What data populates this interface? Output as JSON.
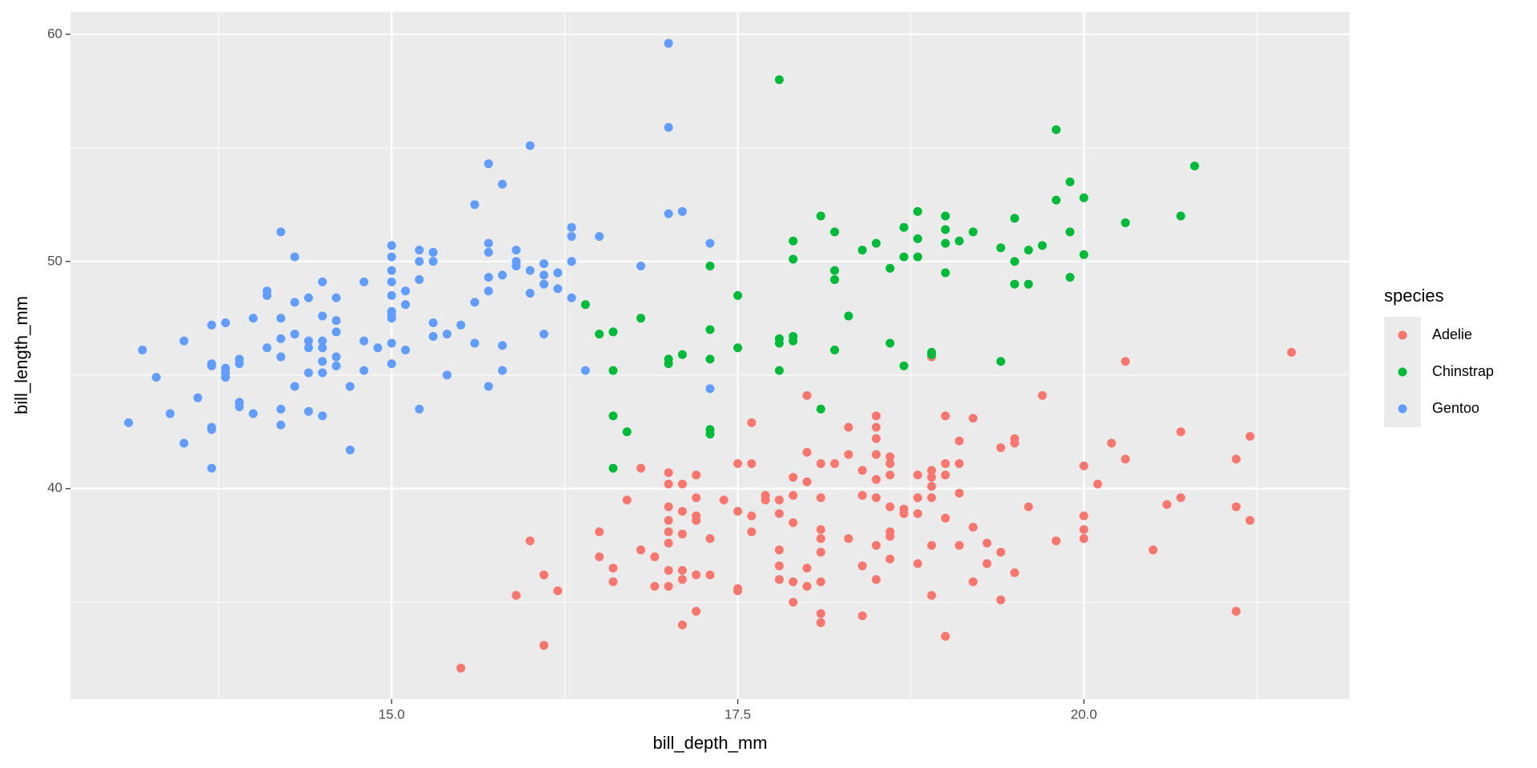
{
  "chart_data": {
    "type": "scatter",
    "x_label": "bill_depth_mm",
    "y_label": "bill_length_mm",
    "legend_title": "species",
    "xlim": [
      12.68,
      21.92
    ],
    "ylim": [
      30.73,
      60.98
    ],
    "xticks": [
      {
        "value": 15,
        "label": "15.0"
      },
      17.5,
      {
        "value": 20,
        "label": "20.0"
      }
    ],
    "yticks": [
      40,
      50,
      60
    ],
    "x_minor_ticks": [
      13.75,
      16.25,
      18.75,
      21.25
    ],
    "y_minor_ticks": [
      35,
      45,
      55
    ],
    "grid": true,
    "legend": "right",
    "series": [
      {
        "name": "Adelie",
        "color": "#F8766D",
        "x": [
          15.5,
          15.9,
          16.0,
          16.1,
          16.1,
          16.2,
          16.5,
          16.5,
          16.6,
          16.6,
          16.7,
          16.8,
          16.8,
          16.9,
          16.9,
          17.0,
          17.0,
          17.0,
          17.0,
          17.0,
          17.0,
          17.0,
          17.0,
          17.1,
          17.1,
          17.1,
          17.1,
          17.1,
          17.1,
          17.2,
          17.2,
          17.2,
          17.2,
          17.2,
          17.2,
          17.3,
          17.3,
          17.4,
          17.5,
          17.5,
          17.5,
          17.5,
          17.6,
          17.6,
          17.6,
          17.6,
          17.7,
          17.7,
          17.8,
          17.8,
          17.8,
          17.8,
          17.8,
          17.9,
          17.9,
          17.9,
          17.9,
          17.9,
          18.0,
          18.0,
          18.0,
          18.0,
          18.0,
          18.1,
          18.1,
          18.1,
          18.1,
          18.1,
          18.1,
          18.1,
          18.1,
          18.2,
          18.3,
          18.3,
          18.3,
          18.4,
          18.4,
          18.4,
          18.4,
          18.5,
          18.5,
          18.5,
          18.5,
          18.5,
          18.5,
          18.5,
          18.5,
          18.6,
          18.6,
          18.6,
          18.6,
          18.6,
          18.6,
          18.6,
          18.7,
          18.7,
          18.8,
          18.8,
          18.8,
          18.8,
          18.9,
          18.9,
          18.9,
          18.9,
          18.9,
          18.9,
          18.9,
          19.0,
          19.0,
          19.0,
          19.0,
          19.0,
          19.1,
          19.1,
          19.1,
          19.1,
          19.2,
          19.2,
          19.2,
          19.3,
          19.3,
          19.4,
          19.4,
          19.4,
          19.5,
          19.5,
          19.5,
          19.6,
          19.7,
          19.8,
          20.0,
          20.0,
          20.0,
          20.0,
          20.1,
          20.2,
          20.3,
          20.3,
          20.5,
          20.6,
          20.7,
          20.7,
          21.1,
          21.1,
          21.1,
          21.2,
          21.2,
          21.5
        ],
        "values": [
          32.1,
          35.3,
          37.7,
          36.2,
          33.1,
          35.5,
          38.1,
          37.0,
          36.5,
          35.9,
          39.5,
          37.3,
          40.9,
          37.0,
          35.7,
          40.7,
          40.2,
          39.2,
          38.6,
          38.1,
          37.6,
          36.4,
          35.7,
          40.2,
          39.0,
          38.0,
          36.4,
          36.0,
          34.0,
          40.6,
          39.6,
          38.8,
          38.6,
          36.2,
          34.6,
          37.8,
          36.2,
          39.5,
          41.1,
          39.0,
          35.6,
          35.5,
          42.9,
          41.1,
          38.8,
          38.1,
          39.7,
          39.5,
          39.5,
          38.9,
          37.3,
          36.6,
          36.0,
          40.5,
          39.7,
          38.5,
          35.9,
          35.0,
          44.1,
          41.6,
          40.3,
          36.5,
          35.7,
          41.1,
          39.6,
          38.2,
          37.8,
          37.2,
          35.9,
          34.5,
          34.1,
          41.1,
          42.7,
          41.5,
          37.8,
          40.8,
          39.7,
          36.6,
          34.4,
          43.2,
          42.7,
          42.2,
          41.5,
          40.4,
          39.6,
          37.5,
          36.0,
          41.4,
          41.1,
          40.6,
          39.2,
          38.1,
          37.9,
          36.9,
          39.1,
          38.9,
          40.6,
          39.6,
          38.9,
          36.7,
          45.8,
          40.8,
          40.5,
          40.1,
          39.6,
          37.5,
          35.3,
          43.2,
          41.1,
          40.6,
          38.7,
          33.5,
          42.1,
          41.1,
          39.8,
          37.5,
          43.1,
          38.3,
          35.9,
          37.6,
          36.7,
          41.8,
          37.2,
          35.1,
          42.2,
          42.0,
          36.3,
          39.2,
          44.1,
          37.7,
          41.0,
          38.8,
          38.2,
          37.8,
          40.2,
          42.0,
          45.6,
          41.3,
          37.3,
          39.3,
          42.5,
          39.6,
          41.3,
          39.2,
          34.6,
          42.3,
          38.6,
          46.0
        ]
      },
      {
        "name": "Chinstrap",
        "color": "#00BA38",
        "x": [
          16.4,
          16.5,
          16.6,
          16.6,
          16.6,
          16.7,
          16.6,
          16.8,
          17.0,
          17.0,
          17.1,
          17.3,
          17.3,
          17.3,
          17.3,
          17.3,
          17.5,
          17.5,
          17.8,
          17.8,
          17.8,
          17.8,
          17.9,
          17.9,
          17.9,
          17.9,
          18.1,
          18.1,
          18.2,
          18.2,
          18.2,
          18.2,
          18.3,
          18.4,
          18.5,
          18.6,
          18.6,
          18.7,
          18.7,
          18.7,
          18.8,
          18.8,
          18.8,
          18.9,
          18.9,
          19.0,
          19.0,
          19.0,
          19.0,
          19.1,
          19.2,
          19.4,
          19.4,
          19.5,
          19.5,
          19.5,
          19.6,
          19.6,
          19.7,
          19.8,
          19.8,
          19.9,
          19.9,
          19.9,
          20.0,
          20.0,
          20.3,
          20.7,
          20.8
        ],
        "values": [
          48.1,
          46.8,
          46.9,
          45.2,
          43.2,
          42.5,
          40.9,
          47.5,
          45.7,
          45.5,
          45.9,
          49.8,
          47.0,
          45.7,
          42.6,
          42.4,
          48.5,
          46.2,
          58.0,
          46.6,
          46.4,
          45.2,
          50.9,
          50.1,
          46.7,
          46.5,
          52.0,
          43.5,
          51.3,
          49.6,
          49.2,
          46.1,
          47.6,
          50.5,
          50.8,
          49.7,
          46.4,
          51.5,
          50.2,
          45.4,
          52.2,
          51.0,
          50.2,
          46.0,
          45.9,
          52.0,
          51.4,
          50.8,
          49.5,
          50.9,
          51.3,
          50.6,
          45.6,
          51.9,
          50.0,
          49.0,
          50.5,
          49.0,
          50.7,
          52.7,
          55.8,
          53.5,
          51.3,
          49.3,
          52.8,
          50.3,
          51.7,
          52.0,
          54.2
        ]
      },
      {
        "name": "Gentoo",
        "color": "#619CFF",
        "x": [
          13.1,
          13.2,
          13.3,
          13.4,
          13.5,
          13.5,
          13.6,
          13.7,
          13.7,
          13.7,
          13.7,
          13.7,
          13.7,
          13.8,
          13.8,
          13.8,
          13.8,
          13.9,
          13.9,
          13.9,
          13.9,
          14.0,
          14.0,
          14.1,
          14.1,
          14.1,
          14.2,
          14.2,
          14.2,
          14.2,
          14.2,
          14.2,
          14.3,
          14.3,
          14.3,
          14.3,
          14.4,
          14.4,
          14.4,
          14.4,
          14.4,
          14.5,
          14.5,
          14.5,
          14.5,
          14.5,
          14.5,
          14.5,
          14.6,
          14.6,
          14.6,
          14.6,
          14.6,
          14.7,
          14.7,
          14.8,
          14.8,
          14.8,
          14.9,
          15.0,
          15.0,
          15.0,
          15.0,
          15.0,
          15.0,
          15.0,
          15.0,
          15.0,
          15.0,
          15.1,
          15.1,
          15.1,
          15.2,
          15.2,
          15.2,
          15.2,
          15.3,
          15.3,
          15.3,
          15.3,
          15.4,
          15.4,
          15.5,
          15.6,
          15.6,
          15.6,
          15.7,
          15.7,
          15.7,
          15.7,
          15.7,
          15.7,
          15.8,
          15.8,
          15.8,
          15.8,
          15.9,
          15.9,
          15.9,
          16.0,
          16.0,
          16.0,
          16.1,
          16.1,
          16.1,
          16.1,
          16.2,
          16.2,
          16.3,
          16.3,
          16.3,
          16.3,
          16.4,
          16.5,
          16.8,
          17.0,
          17.0,
          17.0,
          17.1,
          17.3,
          17.3
        ],
        "values": [
          42.9,
          46.1,
          44.9,
          43.3,
          46.5,
          42.0,
          44.0,
          47.2,
          45.5,
          45.4,
          42.7,
          42.6,
          40.9,
          47.3,
          45.3,
          45.1,
          44.9,
          45.7,
          45.5,
          43.8,
          43.6,
          47.5,
          43.3,
          46.2,
          48.7,
          48.5,
          51.3,
          47.5,
          46.6,
          45.8,
          43.5,
          42.8,
          50.2,
          48.2,
          46.8,
          44.5,
          48.4,
          46.5,
          46.2,
          45.1,
          43.4,
          49.1,
          47.6,
          46.5,
          46.2,
          45.6,
          45.1,
          43.2,
          48.4,
          47.4,
          46.9,
          45.8,
          45.4,
          44.5,
          41.7,
          49.1,
          46.5,
          45.2,
          46.2,
          50.7,
          50.2,
          49.6,
          49.1,
          48.5,
          47.8,
          47.6,
          47.5,
          46.4,
          45.5,
          48.7,
          48.1,
          46.1,
          50.5,
          50.0,
          49.2,
          43.5,
          50.4,
          50.0,
          47.3,
          46.7,
          46.8,
          45.0,
          47.2,
          52.5,
          48.2,
          46.4,
          54.3,
          50.8,
          50.4,
          49.3,
          48.7,
          44.5,
          53.4,
          49.4,
          46.3,
          45.2,
          50.5,
          50.0,
          49.8,
          55.1,
          49.6,
          48.6,
          49.9,
          49.4,
          49.0,
          46.8,
          49.5,
          48.8,
          51.5,
          51.1,
          50.0,
          48.4,
          45.2,
          51.1,
          49.8,
          59.6,
          55.9,
          52.1,
          52.2,
          50.8,
          44.4
        ]
      }
    ]
  }
}
